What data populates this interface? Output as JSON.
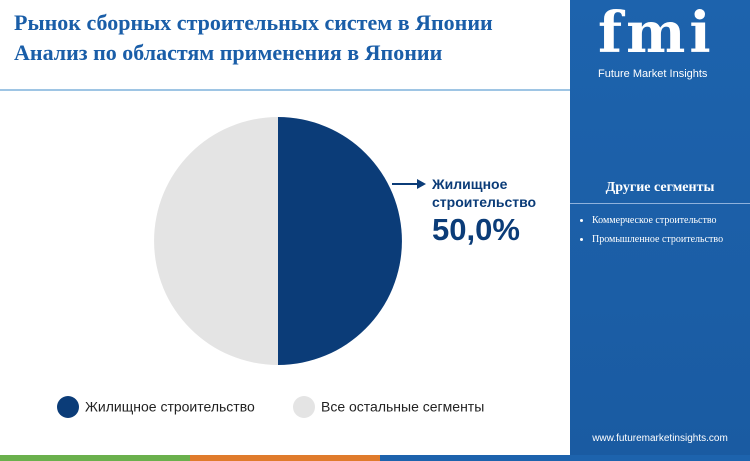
{
  "chart_data": {
    "type": "pie",
    "title": "Рынок сборных строительных систем в Японии",
    "subtitle": "Анализ по областям применения в Японии",
    "categories": [
      "Жилищное строительство",
      "Все остальные сегменты"
    ],
    "values": [
      50,
      50
    ],
    "value_labels": [
      "50,0%",
      null
    ],
    "colors": [
      "#0b3c78",
      "#e4e4e4"
    ]
  },
  "sidebar": {
    "logo": "fmi",
    "brand": "Future Market Insights",
    "heading": "Другие сегменты",
    "items": [
      "Коммерческое строительство",
      "Промышленное строительство"
    ],
    "url": "www.futuremarketinsights.com"
  }
}
